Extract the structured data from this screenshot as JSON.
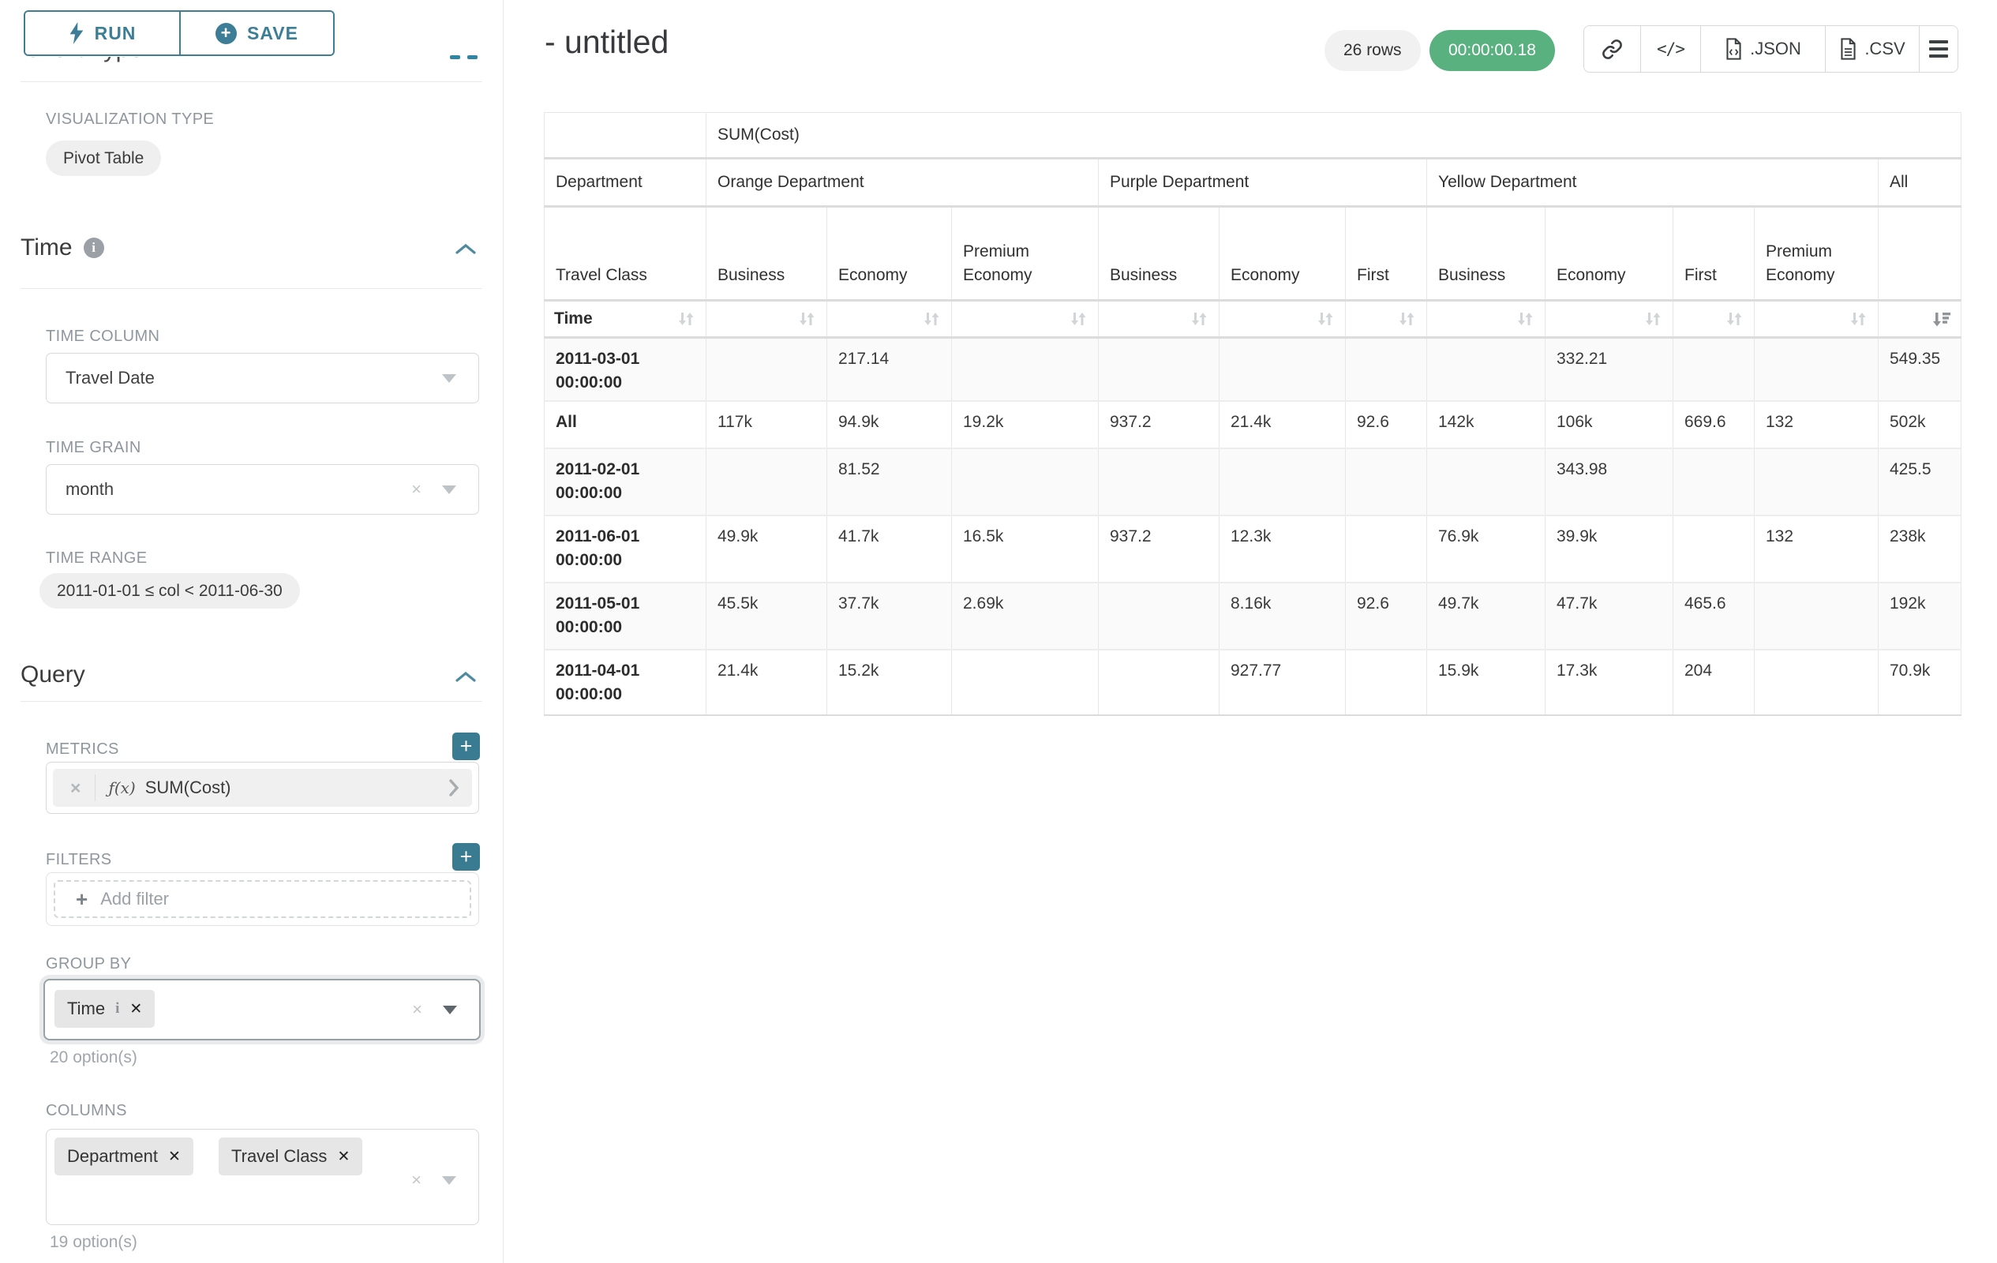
{
  "colors": {
    "accent": "#3d7e96",
    "timer_green": "#5ab180"
  },
  "sidebar": {
    "run": "RUN",
    "save": "SAVE",
    "clipped_heading": "Chart Type",
    "viz": {
      "label": "VISUALIZATION TYPE",
      "value": "Pivot Table"
    },
    "time": {
      "title": "Time",
      "column_label": "TIME COLUMN",
      "column_value": "Travel Date",
      "grain_label": "TIME GRAIN",
      "grain_value": "month",
      "range_label": "TIME RANGE",
      "range_value": "2011-01-01 ≤ col < 2011-06-30"
    },
    "query": {
      "title": "Query",
      "metrics_label": "METRICS",
      "metric_fx": "ƒ(x)",
      "metric_value": "SUM(Cost)",
      "filters_label": "FILTERS",
      "add_filter": "Add filter",
      "groupby_label": "GROUP BY",
      "groupby_pill": "Time",
      "groupby_options": "20 option(s)",
      "columns_label": "COLUMNS",
      "columns_pills": [
        "Department",
        "Travel Class"
      ],
      "columns_options": "19 option(s)"
    }
  },
  "header": {
    "title": "- untitled",
    "rows_badge": "26 rows",
    "timer": "00:00:00.18",
    "json_label": ".JSON",
    "csv_label": ".CSV"
  },
  "pivot_table": {
    "metric_header": "SUM(Cost)",
    "dept_row_label": "Department",
    "class_row_label": "Travel Class",
    "time_row_label": "Time",
    "groups": [
      {
        "label": "Orange Department",
        "classes": [
          "Business",
          "Economy",
          "Premium Economy"
        ]
      },
      {
        "label": "Purple Department",
        "classes": [
          "Business",
          "Economy",
          "First"
        ]
      },
      {
        "label": "Yellow Department",
        "classes": [
          "Business",
          "Economy",
          "First",
          "Premium Economy"
        ]
      },
      {
        "label": "All",
        "classes": [
          ""
        ]
      }
    ],
    "rows": [
      {
        "label": "2011-03-01 00:00:00",
        "values": [
          "",
          "217.14",
          "",
          "",
          "",
          "",
          "",
          "332.21",
          "",
          "",
          "549.35"
        ]
      },
      {
        "label": "All",
        "values": [
          "117k",
          "94.9k",
          "19.2k",
          "937.2",
          "21.4k",
          "92.6",
          "142k",
          "106k",
          "669.6",
          "132",
          "502k"
        ]
      },
      {
        "label": "2011-02-01 00:00:00",
        "values": [
          "",
          "81.52",
          "",
          "",
          "",
          "",
          "",
          "343.98",
          "",
          "",
          "425.5"
        ]
      },
      {
        "label": "2011-06-01 00:00:00",
        "values": [
          "49.9k",
          "41.7k",
          "16.5k",
          "937.2",
          "12.3k",
          "",
          "76.9k",
          "39.9k",
          "",
          "132",
          "238k"
        ]
      },
      {
        "label": "2011-05-01 00:00:00",
        "values": [
          "45.5k",
          "37.7k",
          "2.69k",
          "",
          "8.16k",
          "92.6",
          "49.7k",
          "47.7k",
          "465.6",
          "",
          "192k"
        ]
      },
      {
        "label": "2011-04-01 00:00:00",
        "values": [
          "21.4k",
          "15.2k",
          "",
          "",
          "927.77",
          "",
          "15.9k",
          "17.3k",
          "204",
          "",
          "70.9k"
        ]
      }
    ]
  }
}
